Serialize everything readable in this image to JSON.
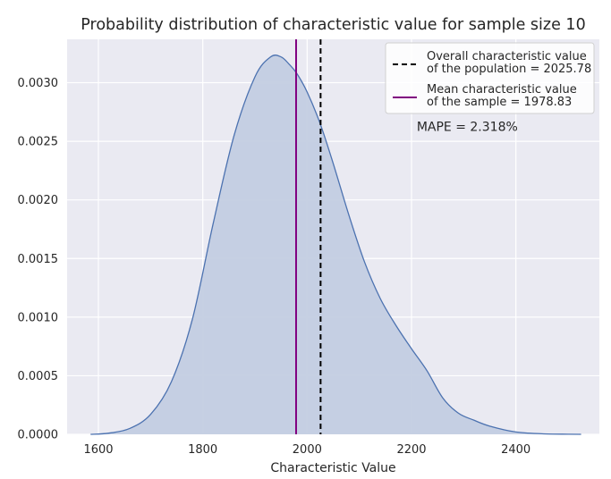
{
  "chart_data": {
    "type": "area",
    "title": "Probability distribution of characteristic value for sample size 10",
    "xlabel": "Characteristic Value",
    "ylabel": "",
    "xlim": [
      1540,
      2560
    ],
    "ylim": [
      0,
      0.00337
    ],
    "x_ticks": [
      "1600",
      "1800",
      "2000",
      "2200",
      "2400"
    ],
    "x_tick_values": [
      1600,
      1800,
      2000,
      2200,
      2400
    ],
    "y_ticks": [
      "0.0000",
      "0.0005",
      "0.0010",
      "0.0015",
      "0.0020",
      "0.0025",
      "0.0030"
    ],
    "y_tick_values": [
      0,
      0.0005,
      0.001,
      0.0015,
      0.002,
      0.0025,
      0.003
    ],
    "grid": true,
    "legend_position": "top-right",
    "colors": {
      "background": "#eaeaf2",
      "grid": "#ffffff",
      "density_line": "#4c72b0",
      "density_fill": "#c3cee2",
      "population_line": "#000000",
      "sample_line": "#800080"
    },
    "series": [
      {
        "kind": "density",
        "x": [
          1585,
          1620,
          1660,
          1700,
          1740,
          1780,
          1820,
          1860,
          1900,
          1930,
          1950,
          1965,
          1980,
          2000,
          2025,
          2050,
          2080,
          2110,
          2140,
          2170,
          2200,
          2230,
          2260,
          2290,
          2320,
          2350,
          2400,
          2450,
          2500,
          2525
        ],
        "y": [
          0.0,
          1e-05,
          5e-05,
          0.00017,
          0.00045,
          0.00098,
          0.0018,
          0.00255,
          0.00305,
          0.00322,
          0.00322,
          0.00316,
          0.00308,
          0.00292,
          0.00265,
          0.00231,
          0.00187,
          0.00147,
          0.00116,
          0.00093,
          0.00073,
          0.00054,
          0.00031,
          0.00018,
          0.00012,
          7e-05,
          2e-05,
          5e-06,
          1e-06,
          0.0
        ]
      }
    ],
    "vlines": [
      {
        "name": "Overall characteristic value\nof the population = 2025.78",
        "x": 2025.78,
        "style": "dashed",
        "color": "#000000"
      },
      {
        "name": "Mean characteristic value\nof the sample  = 1978.83",
        "x": 1978.83,
        "style": "solid",
        "color": "#800080"
      }
    ],
    "legend": [
      {
        "line1": "Overall characteristic value",
        "line2": "of the population = 2025.78",
        "style": "dashed",
        "color": "#000000"
      },
      {
        "line1": "Mean characteristic value",
        "line2": "of the sample  = 1978.83",
        "style": "solid",
        "color": "#800080"
      }
    ],
    "annotations": [
      {
        "text": "MAPE = 2.318%",
        "x": 2210,
        "y": 0.00259
      }
    ]
  }
}
